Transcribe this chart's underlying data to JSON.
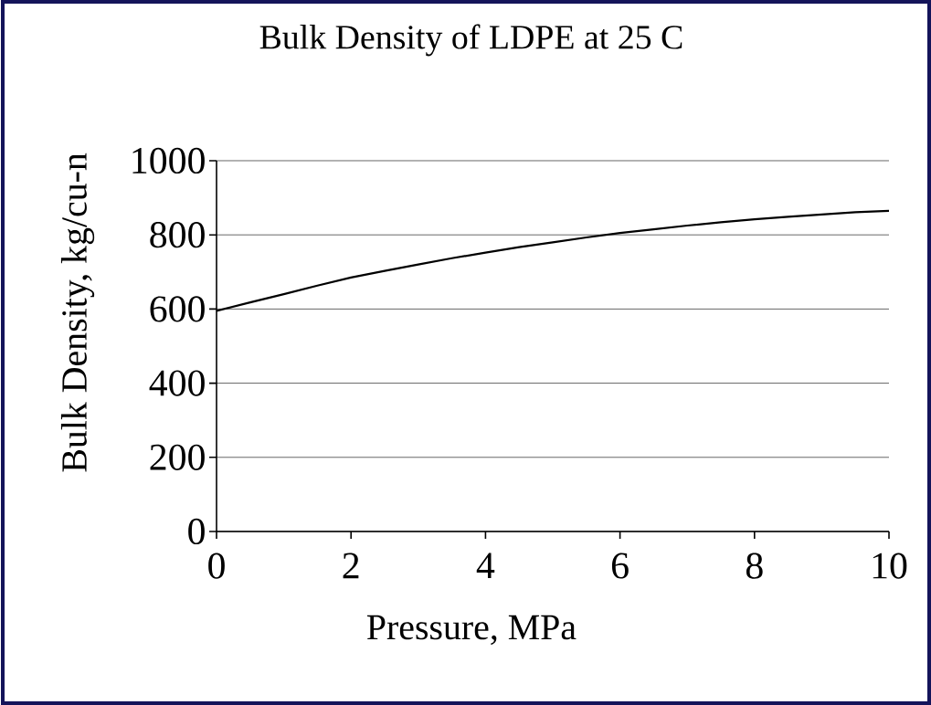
{
  "chart_data": {
    "type": "line",
    "title": "Bulk Density of LDPE at 25 C",
    "xlabel": "Pressure, MPa",
    "ylabel": "Bulk Density, kg/cu-n",
    "x": [
      0,
      0.5,
      1,
      1.5,
      2,
      2.5,
      3,
      3.5,
      4,
      4.5,
      5,
      5.5,
      6,
      6.5,
      7,
      7.5,
      8,
      8.5,
      9,
      9.5,
      10
    ],
    "series": [
      {
        "color": "#000000",
        "values": [
          595,
          618,
          640,
          663,
          685,
          703,
          720,
          737,
          752,
          767,
          780,
          793,
          805,
          815,
          825,
          834,
          842,
          849,
          855,
          861,
          865
        ]
      }
    ],
    "xlim": [
      0,
      10
    ],
    "ylim": [
      0,
      1000
    ],
    "xticks": [
      0,
      2,
      4,
      6,
      8,
      10
    ],
    "yticks": [
      0,
      200,
      400,
      600,
      800,
      1000
    ],
    "grid": "y",
    "marker": "none",
    "line_style": "solid"
  }
}
